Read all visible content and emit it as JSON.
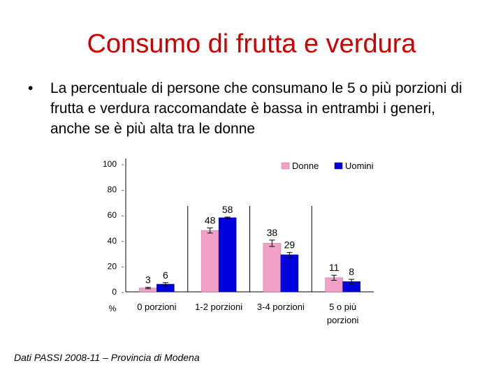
{
  "slide": {
    "title": "Consumo di frutta e verdura",
    "bullet": "La percentuale di persone che consumano le 5 o più porzioni di frutta e verdura raccomandate è bassa in entrambi i generi, anche se è più alta tra le donne",
    "footer": "Dati PASSI 2008-11 – Provincia di Modena"
  },
  "chart_data": {
    "type": "bar",
    "categories": [
      "0 porzioni",
      "1-2 porzioni",
      "3-4 porzioni",
      "5 o più porzioni"
    ],
    "series": [
      {
        "name": "Donne",
        "values": [
          3,
          48,
          38,
          11
        ],
        "errors": [
          0.6,
          2.0,
          2.5,
          2.0
        ],
        "color": "#f2a0c8"
      },
      {
        "name": "Uomini",
        "values": [
          6,
          58,
          29,
          8
        ],
        "errors": [
          1.2,
          0.5,
          1.8,
          1.8
        ],
        "color": "#0000dd"
      }
    ],
    "data_labels": [
      [
        "3",
        "48",
        "38",
        "11"
      ],
      [
        "6",
        "58",
        "29",
        "8"
      ]
    ],
    "ylim": [
      0,
      100
    ],
    "yticks": [
      0,
      20,
      40,
      60,
      80,
      100
    ],
    "ytick_labels": [
      "0",
      "20",
      "40",
      "60",
      "80",
      "100"
    ],
    "y_unit_label": "%",
    "legend": {
      "position": "top-right",
      "entries": [
        "Donne",
        "Uomini"
      ]
    },
    "grid": false
  }
}
